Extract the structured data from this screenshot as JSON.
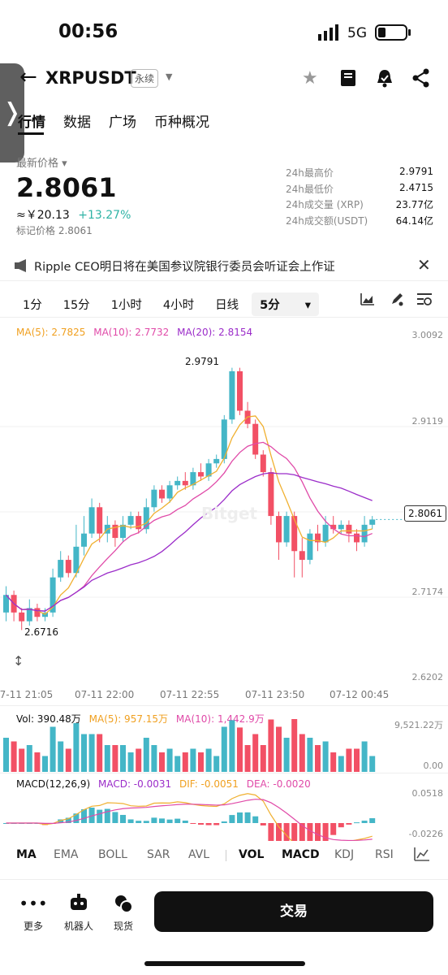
{
  "status": {
    "time": "00:56",
    "network": "5G"
  },
  "header": {
    "pair": "XRPUSDT",
    "contract_type": "永续"
  },
  "tabs": [
    "行情",
    "数据",
    "广场",
    "币种概况"
  ],
  "price": {
    "label": "最新价格",
    "last": "2.8061",
    "cny": "≈￥20.13",
    "change": "+13.27%",
    "mark": "标记价格 2.8061"
  },
  "stats": [
    {
      "k": "24h最高价",
      "v": "2.9791"
    },
    {
      "k": "24h最低价",
      "v": "2.4715"
    },
    {
      "k": "24h成交量 (XRP)",
      "v": "23.77亿"
    },
    {
      "k": "24h成交额(USDT)",
      "v": "64.14亿"
    }
  ],
  "news": "Ripple CEO明日将在美国参议院银行委员会听证会上作证",
  "intervals": [
    "1分",
    "15分",
    "1小时",
    "4小时",
    "日线",
    "5分"
  ],
  "ma": {
    "ma5": "MA(5): 2.7825",
    "ma10": "MA(10): 2.7732",
    "ma20": "MA(20): 2.8154"
  },
  "axis": [
    "3.0092",
    "2.9119",
    "2.8061",
    "2.7174",
    "2.6202"
  ],
  "hi_mark": "2.9791",
  "lo_mark": "2.6716",
  "watermark": "Bitget",
  "time_labels": [
    "07-11 21:05",
    "07-11 22:00",
    "07-11 22:55",
    "07-11 23:50",
    "07-12 00:45"
  ],
  "vol": {
    "vol": "Vol: 390.48万",
    "ma5": "MA(5): 957.15万",
    "ma10": "MA(10): 1,442.9万",
    "max": "9,521.22万",
    "zero": "0.00"
  },
  "macd": {
    "label": "MACD(12,26,9)",
    "macd": "MACD: -0.0031",
    "dif": "DIF: -0.0051",
    "dea": "DEA: -0.0020",
    "top": "0.0518",
    "bottom": "-0.0226"
  },
  "indicators": [
    "MA",
    "EMA",
    "BOLL",
    "SAR",
    "AVL",
    "VOL",
    "MACD",
    "KDJ",
    "RSI"
  ],
  "bottom": {
    "more": "更多",
    "bot": "机器人",
    "spot": "现货",
    "trade": "交易"
  },
  "colors": {
    "up": "#44b6c7",
    "down": "#f25065",
    "ma5": "#f0b030",
    "ma10": "#e04aa8",
    "ma20": "#9b2cc9"
  },
  "chart_data": {
    "type": "candlestick",
    "interval": "5分",
    "ylim": [
      2.6202,
      3.0092
    ],
    "candles": [
      [
        2.7,
        2.72,
        2.69,
        2.73
      ],
      [
        2.72,
        2.7,
        2.69,
        2.725
      ],
      [
        2.7,
        2.69,
        2.68,
        2.705
      ],
      [
        2.69,
        2.705,
        2.685,
        2.715
      ],
      [
        2.705,
        2.695,
        2.69,
        2.71
      ],
      [
        2.695,
        2.7,
        2.69,
        2.705
      ],
      [
        2.7,
        2.74,
        2.695,
        2.75
      ],
      [
        2.74,
        2.76,
        2.735,
        2.77
      ],
      [
        2.76,
        2.745,
        2.74,
        2.765
      ],
      [
        2.745,
        2.775,
        2.74,
        2.8
      ],
      [
        2.775,
        2.79,
        2.765,
        2.81
      ],
      [
        2.79,
        2.82,
        2.785,
        2.83
      ],
      [
        2.82,
        2.79,
        2.78,
        2.825
      ],
      [
        2.79,
        2.8,
        2.78,
        2.81
      ],
      [
        2.8,
        2.785,
        2.775,
        2.805
      ],
      [
        2.785,
        2.8,
        2.78,
        2.81
      ],
      [
        2.8,
        2.81,
        2.795,
        2.815
      ],
      [
        2.81,
        2.795,
        2.79,
        2.815
      ],
      [
        2.795,
        2.82,
        2.79,
        2.83
      ],
      [
        2.82,
        2.84,
        2.815,
        2.845
      ],
      [
        2.84,
        2.83,
        2.825,
        2.845
      ],
      [
        2.83,
        2.845,
        2.825,
        2.85
      ],
      [
        2.845,
        2.85,
        2.84,
        2.855
      ],
      [
        2.85,
        2.845,
        2.84,
        2.86
      ],
      [
        2.845,
        2.86,
        2.84,
        2.865
      ],
      [
        2.86,
        2.855,
        2.85,
        2.87
      ],
      [
        2.855,
        2.87,
        2.85,
        2.875
      ],
      [
        2.87,
        2.875,
        2.865,
        2.88
      ],
      [
        2.875,
        2.92,
        2.87,
        2.925
      ],
      [
        2.92,
        2.975,
        2.915,
        2.979
      ],
      [
        2.975,
        2.93,
        2.925,
        2.979
      ],
      [
        2.93,
        2.915,
        2.91,
        2.94
      ],
      [
        2.915,
        2.88,
        2.875,
        2.92
      ],
      [
        2.88,
        2.86,
        2.855,
        2.885
      ],
      [
        2.86,
        2.81,
        2.8,
        2.865
      ],
      [
        2.81,
        2.78,
        2.76,
        2.815
      ],
      [
        2.78,
        2.81,
        2.775,
        2.815
      ],
      [
        2.81,
        2.77,
        2.74,
        2.815
      ],
      [
        2.77,
        2.76,
        2.74,
        2.785
      ],
      [
        2.76,
        2.79,
        2.755,
        2.795
      ],
      [
        2.79,
        2.78,
        2.77,
        2.8
      ],
      [
        2.78,
        2.8,
        2.775,
        2.81
      ],
      [
        2.8,
        2.795,
        2.79,
        2.81
      ],
      [
        2.795,
        2.8,
        2.79,
        2.805
      ],
      [
        2.8,
        2.79,
        2.78,
        2.805
      ],
      [
        2.79,
        2.78,
        2.77,
        2.795
      ],
      [
        2.78,
        2.8,
        2.775,
        2.81
      ],
      [
        2.8,
        2.806,
        2.795,
        2.81
      ]
    ]
  }
}
